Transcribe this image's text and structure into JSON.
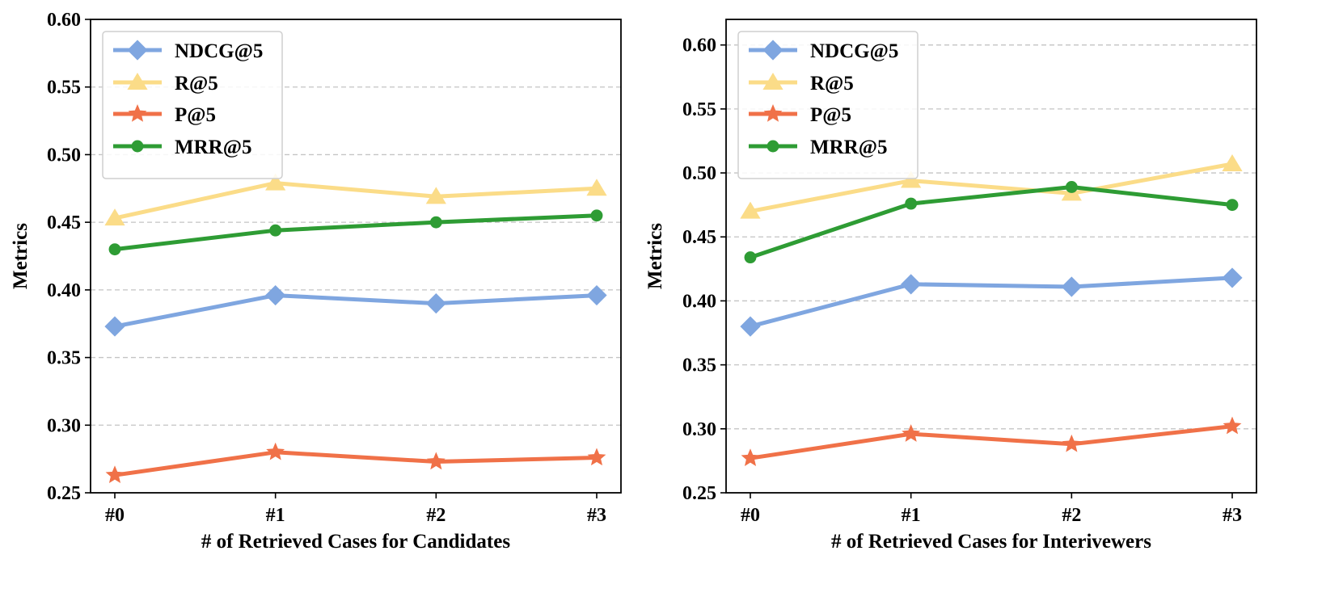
{
  "chart_data": [
    {
      "type": "line",
      "xlabel": "# of Retrieved Cases for Candidates",
      "ylabel": "Metrics",
      "categories": [
        "#0",
        "#1",
        "#2",
        "#3"
      ],
      "ylim": [
        0.25,
        0.6
      ],
      "yticks": [
        "0.25",
        "0.30",
        "0.35",
        "0.40",
        "0.45",
        "0.50",
        "0.55",
        "0.60"
      ],
      "ytick_values": [
        0.25,
        0.3,
        0.35,
        0.4,
        0.45,
        0.5,
        0.55,
        0.6
      ],
      "grid": "y-dashed",
      "legend_position": "top-left",
      "series": [
        {
          "name": "NDCG@5",
          "color": "#7fa6e0",
          "marker": "diamond",
          "values": [
            0.373,
            0.396,
            0.39,
            0.396
          ]
        },
        {
          "name": "R@5",
          "color": "#fbdc88",
          "marker": "triangle",
          "values": [
            0.453,
            0.479,
            0.469,
            0.475
          ]
        },
        {
          "name": "P@5",
          "color": "#f07148",
          "marker": "star",
          "values": [
            0.263,
            0.28,
            0.273,
            0.276
          ]
        },
        {
          "name": "MRR@5",
          "color": "#2e9c34",
          "marker": "circle",
          "values": [
            0.43,
            0.444,
            0.45,
            0.455
          ]
        }
      ]
    },
    {
      "type": "line",
      "xlabel": "# of Retrieved Cases for Interivewers",
      "ylabel": "Metrics",
      "categories": [
        "#0",
        "#1",
        "#2",
        "#3"
      ],
      "ylim": [
        0.25,
        0.62
      ],
      "yticks": [
        "0.25",
        "0.30",
        "0.35",
        "0.40",
        "0.45",
        "0.50",
        "0.55",
        "0.60"
      ],
      "ytick_values": [
        0.25,
        0.3,
        0.35,
        0.4,
        0.45,
        0.5,
        0.55,
        0.6
      ],
      "grid": "y-dashed",
      "legend_position": "top-left",
      "series": [
        {
          "name": "NDCG@5",
          "color": "#7fa6e0",
          "marker": "diamond",
          "values": [
            0.38,
            0.413,
            0.411,
            0.418
          ]
        },
        {
          "name": "R@5",
          "color": "#fbdc88",
          "marker": "triangle",
          "values": [
            0.47,
            0.494,
            0.484,
            0.507
          ]
        },
        {
          "name": "P@5",
          "color": "#f07148",
          "marker": "star",
          "values": [
            0.277,
            0.296,
            0.288,
            0.302
          ]
        },
        {
          "name": "MRR@5",
          "color": "#2e9c34",
          "marker": "circle",
          "values": [
            0.434,
            0.476,
            0.489,
            0.475
          ]
        }
      ]
    }
  ]
}
